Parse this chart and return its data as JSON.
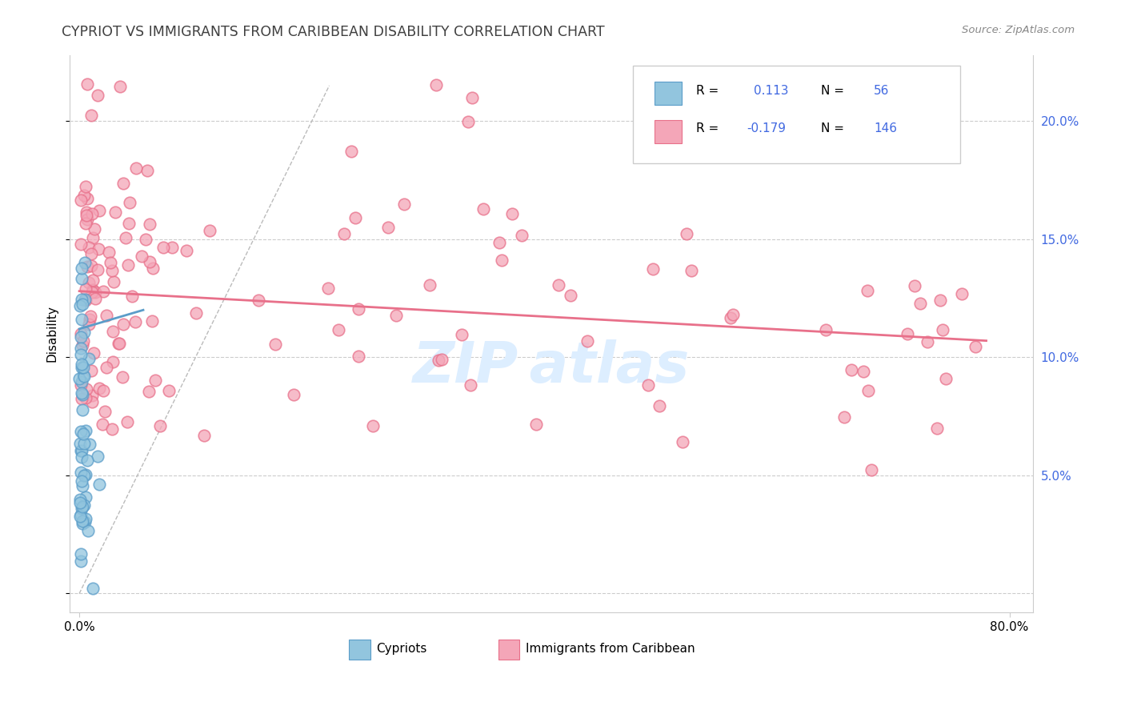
{
  "title": "CYPRIOT VS IMMIGRANTS FROM CARIBBEAN DISABILITY CORRELATION CHART",
  "source": "Source: ZipAtlas.com",
  "ylabel": "Disability",
  "cypriot_color": "#92c5de",
  "cypriot_edge": "#5b9dc9",
  "caribbean_color": "#f4a6b8",
  "caribbean_edge": "#e8708a",
  "trend_blue": "#5b9dc9",
  "trend_pink": "#e8708a",
  "grid_color": "#cccccc",
  "ref_line_color": "#bbbbbb",
  "background_color": "#ffffff",
  "right_tick_color": "#4169e1",
  "title_color": "#404040",
  "source_color": "#888888",
  "watermark_color": "#ddeeff",
  "legend_r1_val": "0.113",
  "legend_n1_val": "56",
  "legend_r2_val": "-0.179",
  "legend_n2_val": "146"
}
